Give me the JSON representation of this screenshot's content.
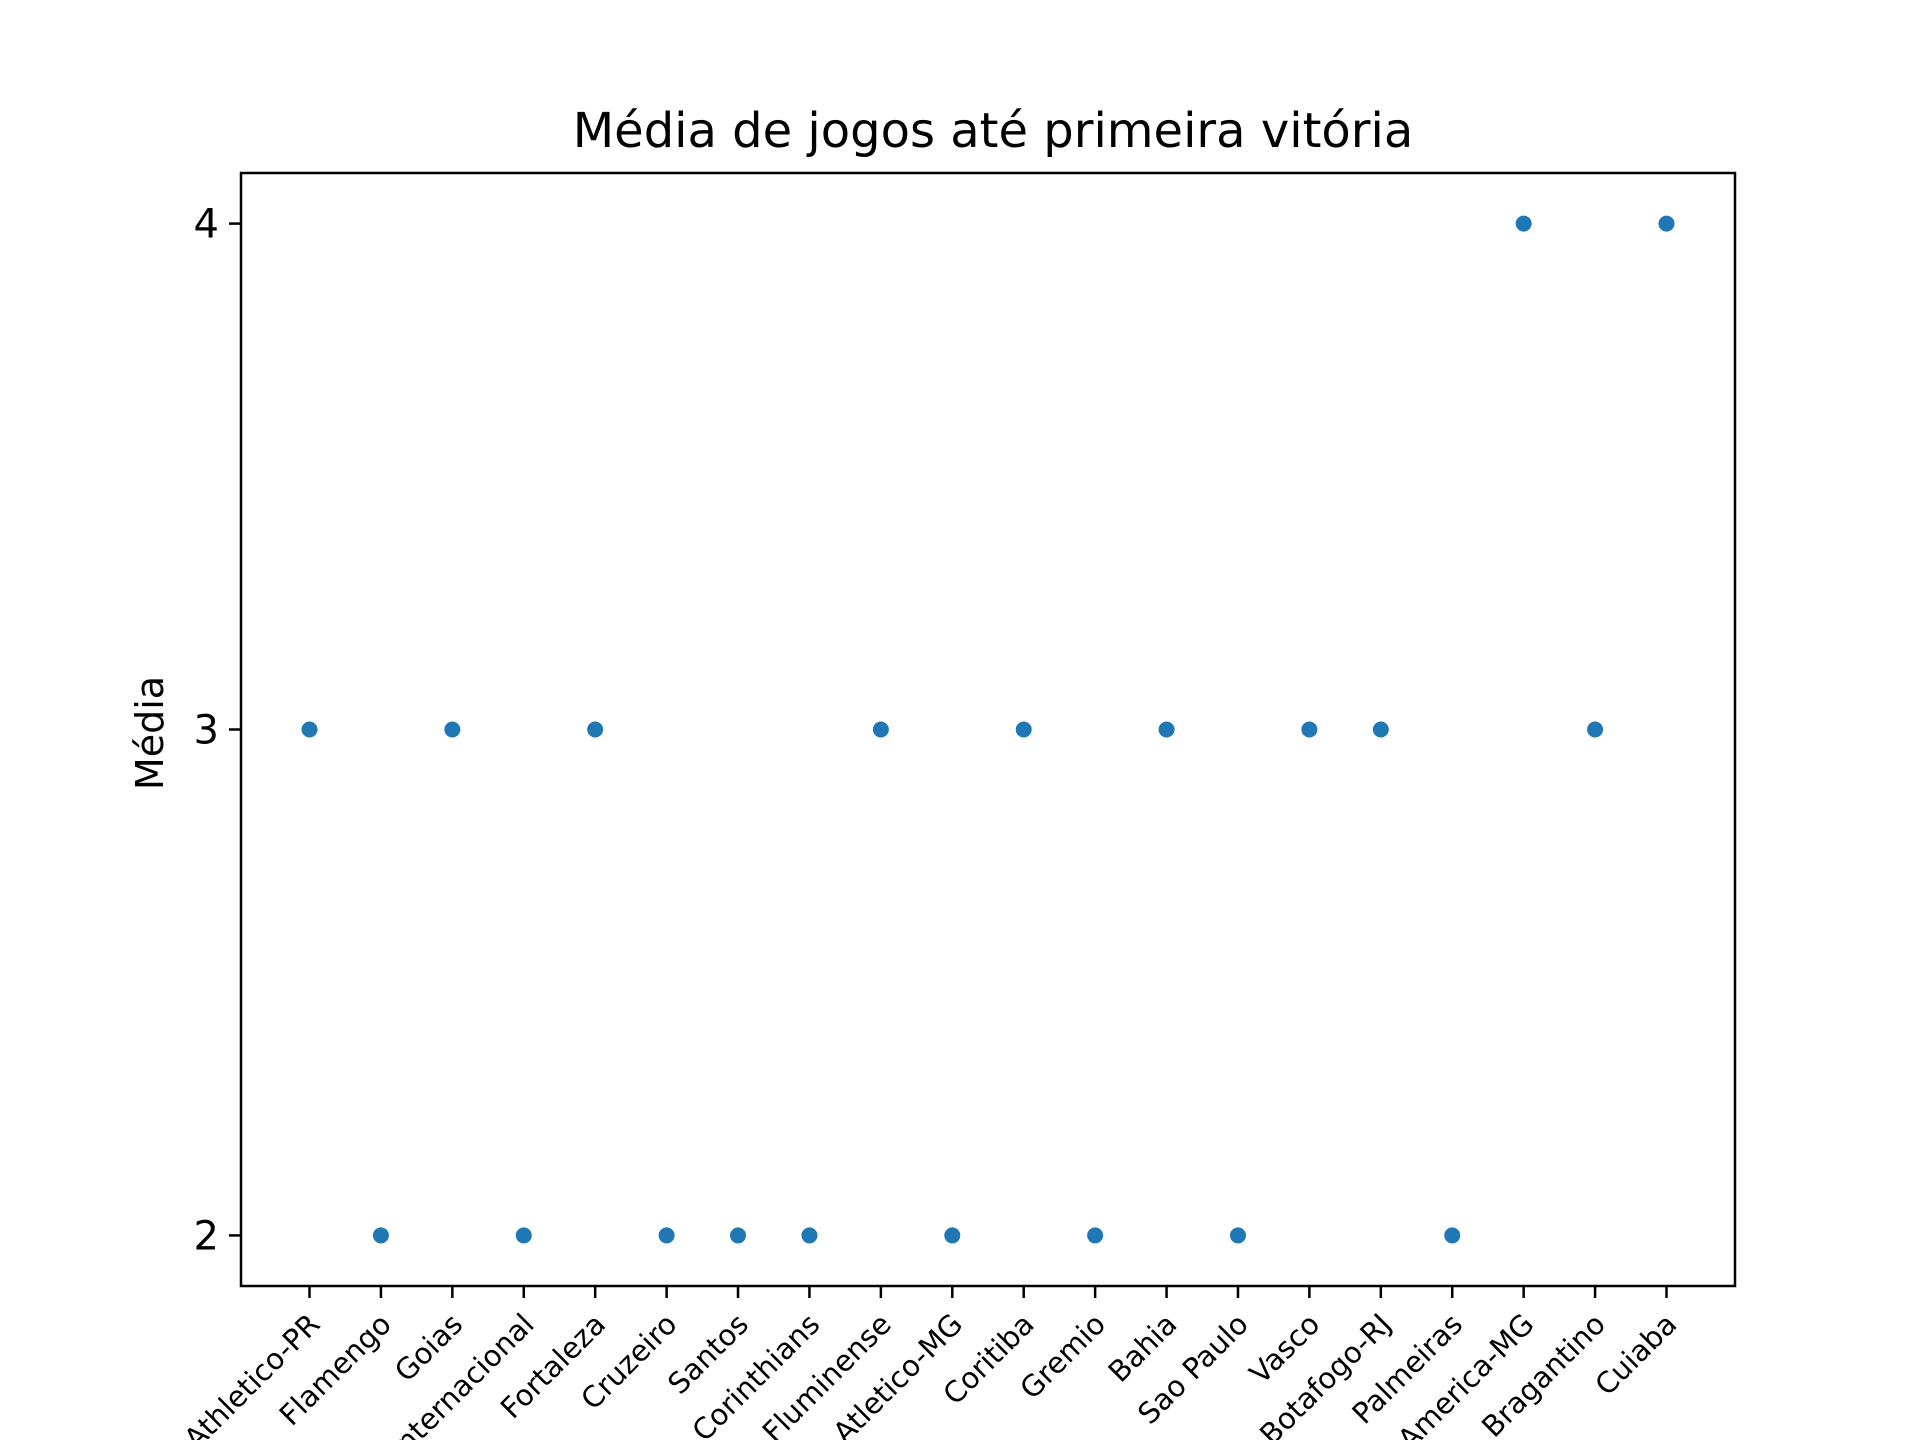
{
  "chart_data": {
    "type": "scatter",
    "title": "Média de jogos até primeira vitória",
    "xlabel": "",
    "ylabel": "Média",
    "categories": [
      "Athletico-PR",
      "Flamengo",
      "Goias",
      "Internacional",
      "Fortaleza",
      "Cruzeiro",
      "Santos",
      "Corinthians",
      "Fluminense",
      "Atletico-MG",
      "Coritiba",
      "Gremio",
      "Bahia",
      "Sao Paulo",
      "Vasco",
      "Botafogo-RJ",
      "Palmeiras",
      "America-MG",
      "Bragantino",
      "Cuiaba"
    ],
    "values": [
      3,
      2,
      3,
      2,
      3,
      2,
      2,
      2,
      3,
      2,
      3,
      2,
      3,
      2,
      3,
      3,
      2,
      4,
      3,
      4
    ],
    "yticks": [
      2,
      3,
      4
    ],
    "ylim": [
      1.9,
      4.1
    ],
    "grid": false,
    "legend": "none",
    "marker_color": "#1f77b4",
    "xtick_rotation": 45
  }
}
